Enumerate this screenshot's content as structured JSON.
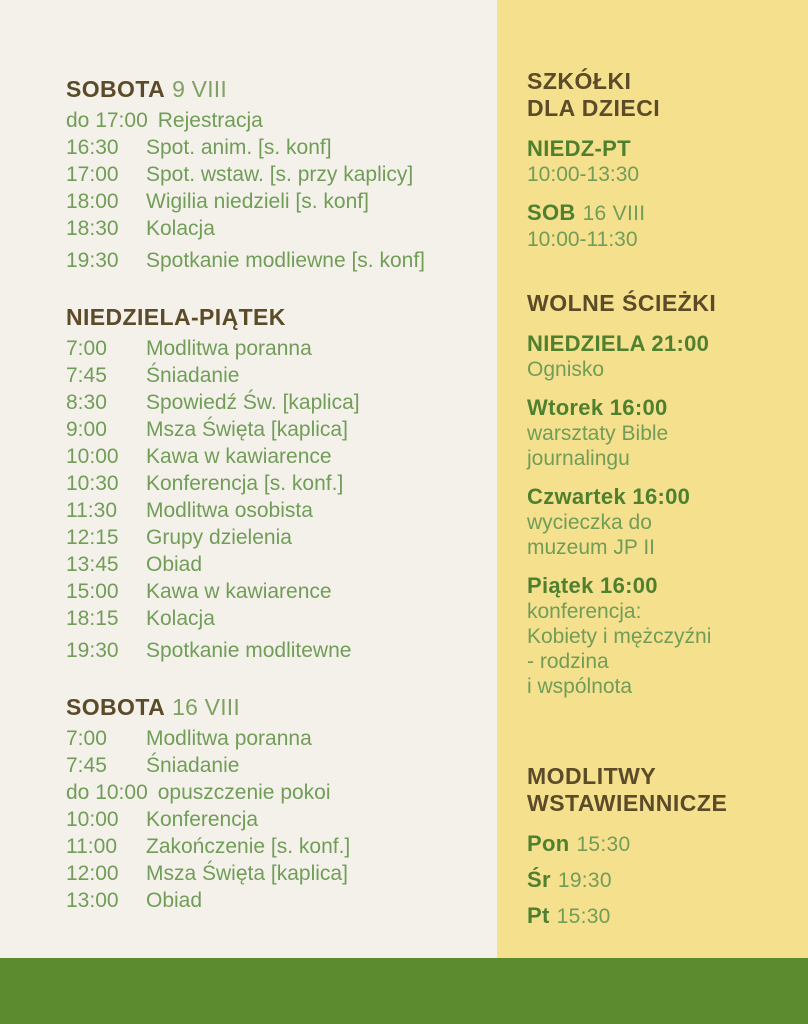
{
  "colors": {
    "left_background": "#F4F1EA",
    "right_background": "#F4E08D",
    "footer_green": "#5B8B2E",
    "heading_brown": "#5B4B28",
    "accent_green": "#4F8030",
    "body_green": "#719D58",
    "sage_green": "#7FA263"
  },
  "left": {
    "sections": [
      {
        "title": "SOBOTA",
        "suffix": "9 VIII",
        "rows": [
          {
            "time": "do 17:00",
            "activity": "Rejestracja"
          },
          {
            "time": "16:30",
            "activity": "Spot. anim. [s. konf]"
          },
          {
            "time": "17:00",
            "activity": "Spot. wstaw. [s. przy kaplicy]"
          },
          {
            "time": "18:00",
            "activity": "Wigilia niedzieli [s. konf]"
          },
          {
            "time": "18:30",
            "activity": "Kolacja"
          },
          {
            "time": "19:30",
            "activity": "Spotkanie modliewne [s. konf]"
          }
        ]
      },
      {
        "title": "NIEDZIELA-PIĄTEK",
        "suffix": "",
        "rows": [
          {
            "time": "7:00",
            "activity": "Modlitwa poranna"
          },
          {
            "time": "7:45",
            "activity": "Śniadanie"
          },
          {
            "time": "8:30",
            "activity": "Spowiedź Św. [kaplica]"
          },
          {
            "time": "9:00",
            "activity": "Msza Święta [kaplica]"
          },
          {
            "time": "10:00",
            "activity": "Kawa w kawiarence"
          },
          {
            "time": "10:30",
            "activity": "Konferencja [s. konf.]"
          },
          {
            "time": "11:30",
            "activity": "Modlitwa osobista"
          },
          {
            "time": "12:15",
            "activity": "Grupy dzielenia"
          },
          {
            "time": "13:45",
            "activity": "Obiad"
          },
          {
            "time": "15:00",
            "activity": "Kawa w kawiarence"
          },
          {
            "time": "18:15",
            "activity": "Kolacja"
          },
          {
            "time": "19:30",
            "activity": "Spotkanie modlitewne"
          }
        ]
      },
      {
        "title": "SOBOTA",
        "suffix": "16 VIII",
        "rows": [
          {
            "time": "7:00",
            "activity": "Modlitwa poranna"
          },
          {
            "time": "7:45",
            "activity": "Śniadanie"
          },
          {
            "time": "do 10:00",
            "activity": "opuszczenie pokoi"
          },
          {
            "time": "10:00",
            "activity": "Konferencja"
          },
          {
            "time": "11:00",
            "activity": "Zakończenie [s. konf.]"
          },
          {
            "time": "12:00",
            "activity": "Msza Święta [kaplica]"
          },
          {
            "time": "13:00",
            "activity": "Obiad"
          }
        ]
      }
    ]
  },
  "right": {
    "sections": [
      {
        "heading_lines": [
          "SZKÓŁKI",
          "DLA DZIECI"
        ],
        "entries": [
          {
            "label": "NIEDZ-PT",
            "suffix": "",
            "lines": [
              "10:00-13:30"
            ]
          },
          {
            "label": "SOB",
            "suffix": "16 VIII",
            "lines": [
              "10:00-11:30"
            ]
          }
        ]
      },
      {
        "heading_lines": [
          "WOLNE ŚCIEŻKI"
        ],
        "entries": [
          {
            "label": "NIEDZIELA 21:00",
            "suffix": "",
            "lines": [
              "Ognisko"
            ]
          },
          {
            "label": "Wtorek 16:00",
            "suffix": "",
            "lines": [
              "warsztaty Bible",
              "journalingu"
            ]
          },
          {
            "label": "Czwartek 16:00",
            "suffix": "",
            "lines": [
              "wycieczka do",
              "muzeum JP II"
            ]
          },
          {
            "label": "Piątek 16:00",
            "suffix": "",
            "lines": [
              "konferencja:",
              "Kobiety i mężczyźni",
              "- rodzina",
              "i wspólnota"
            ]
          }
        ]
      },
      {
        "heading_lines": [
          "MODLITWY",
          "WSTAWIENNICZE"
        ],
        "entries": [
          {
            "label": "Pon",
            "suffix": "15:30",
            "lines": []
          },
          {
            "label": "Śr",
            "suffix": "19:30",
            "lines": []
          },
          {
            "label": "Pt",
            "suffix": "15:30",
            "lines": []
          }
        ]
      }
    ]
  }
}
